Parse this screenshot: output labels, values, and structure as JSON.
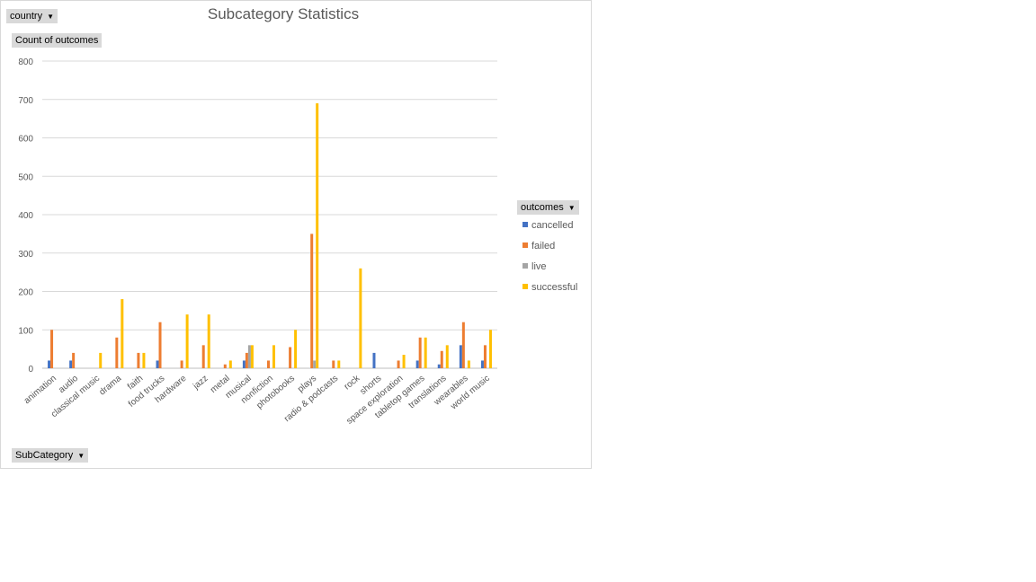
{
  "filters": {
    "report_filter_label": "country",
    "value_field_label": "Count of outcomes",
    "axis_field_label": "SubCategory",
    "legend_field_label": "outcomes"
  },
  "chart_data": {
    "type": "bar",
    "title": "Subcategory Statistics",
    "xlabel": "",
    "ylabel": "",
    "ylim": [
      0,
      800
    ],
    "yticks": [
      0,
      100,
      200,
      300,
      400,
      500,
      600,
      700,
      800
    ],
    "grid": true,
    "legend_position": "right",
    "categories": [
      "animation",
      "audio",
      "classical music",
      "drama",
      "faith",
      "food trucks",
      "hardware",
      "jazz",
      "metal",
      "musical",
      "nonfiction",
      "photobooks",
      "plays",
      "radio & podcasts",
      "rock",
      "shorts",
      "space exploration",
      "tabletop games",
      "translations",
      "wearables",
      "world music"
    ],
    "category_labels": [
      "animation",
      "audio",
      "classical music",
      "drama",
      "faith",
      "food trucks",
      "hardware",
      "jazz",
      "metal",
      "musical",
      "nonfiction",
      "photobooks",
      "plays",
      "radio & podcasts",
      "rock",
      "shorts",
      "space exploration",
      "tabletop games",
      "translations",
      "wearables",
      "world music"
    ],
    "series": [
      {
        "name": "cancelled",
        "color": "#4472c4",
        "values": [
          20,
          20,
          0,
          0,
          0,
          20,
          0,
          0,
          0,
          20,
          0,
          0,
          0,
          0,
          0,
          40,
          0,
          20,
          10,
          60,
          20
        ]
      },
      {
        "name": "failed",
        "color": "#ed7d31",
        "values": [
          100,
          40,
          0,
          80,
          40,
          120,
          20,
          60,
          10,
          40,
          20,
          55,
          350,
          20,
          0,
          0,
          20,
          80,
          45,
          120,
          60
        ]
      },
      {
        "name": "live",
        "color": "#a5a5a5",
        "values": [
          0,
          0,
          0,
          0,
          0,
          0,
          0,
          0,
          0,
          60,
          0,
          0,
          20,
          0,
          0,
          0,
          0,
          0,
          0,
          0,
          0
        ]
      },
      {
        "name": "successful",
        "color": "#ffc000",
        "values": [
          0,
          0,
          40,
          180,
          40,
          0,
          140,
          140,
          20,
          60,
          60,
          100,
          690,
          20,
          260,
          0,
          35,
          80,
          60,
          20,
          100
        ]
      }
    ]
  }
}
